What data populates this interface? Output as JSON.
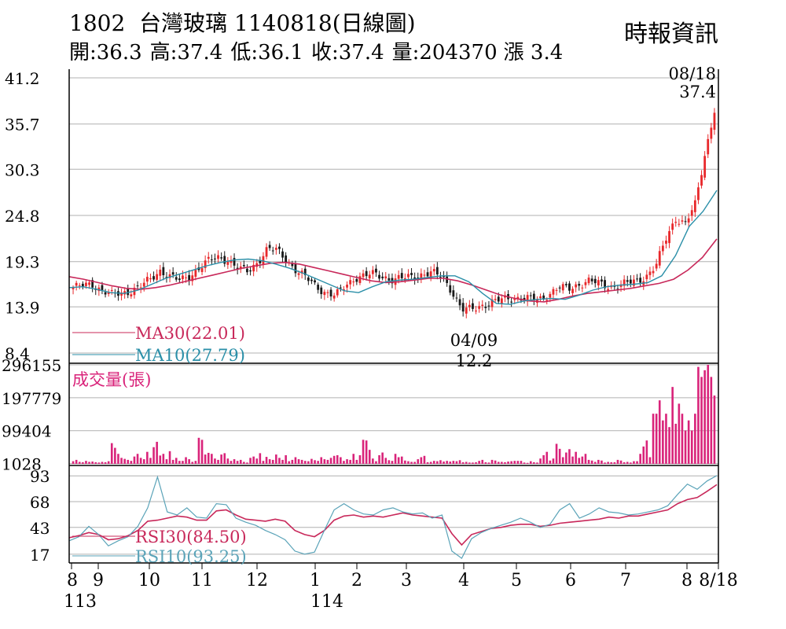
{
  "header": {
    "code": "1802",
    "name": "台灣玻璃",
    "date_chart": "1140818(日線圖)",
    "source": "時報資訊",
    "open": "開:36.3",
    "high": "高:37.4",
    "low": "低:36.1",
    "close": "收:37.4",
    "volume": "量:204370",
    "change": "漲 3.4"
  },
  "colors": {
    "up": "#e8282b",
    "down": "#1a1a1a",
    "ma30": "#c8285a",
    "ma10": "#2a8fa8",
    "volume": "#d9237a",
    "rsi30": "#c8285a",
    "rsi10": "#5aa3b8",
    "grid": "#b0b0b0"
  },
  "chart_data": [
    {
      "type": "candlestick",
      "panel": "price",
      "y_ticks": [
        "41.2",
        "35.7",
        "30.3",
        "24.8",
        "19.3",
        "13.9",
        "8.4"
      ],
      "ylim": [
        8.4,
        41.2
      ],
      "ma30_label": "MA30(22.01)",
      "ma10_label": "MA10(27.79)",
      "annotations": [
        {
          "date": "08/18",
          "value": "37.4"
        },
        {
          "date": "04/09",
          "value": "12.2"
        }
      ],
      "close_path": [
        16.2,
        16.4,
        16.6,
        15.9,
        15.3,
        15.5,
        15.9,
        16.4,
        17.2,
        18.3,
        17.5,
        17.0,
        17.6,
        18.6,
        19.4,
        19.8,
        19.5,
        18.4,
        18.1,
        19.3,
        20.8,
        20.6,
        19.5,
        18.2,
        17.3,
        16.4,
        15.6,
        15.2,
        16.4,
        17.4,
        17.6,
        17.8,
        17.5,
        17.1,
        17.3,
        17.6,
        17.8,
        17.9,
        17.5,
        15.8,
        13.5,
        13.6,
        14.1,
        14.4,
        14.7,
        15.0,
        15.0,
        14.8,
        14.8,
        15.5,
        16.2,
        16.0,
        16.6,
        17.0,
        16.7,
        16.4,
        16.4,
        16.7,
        17.0,
        17.6,
        18.8,
        22.0,
        24.5,
        23.8,
        26.0,
        32.0,
        37.4
      ],
      "ma30_path": [
        17.5,
        17.2,
        16.8,
        16.4,
        16.1,
        16.0,
        16.2,
        16.5,
        16.9,
        17.3,
        17.7,
        18.1,
        18.5,
        18.8,
        19.1,
        19.2,
        19.0,
        18.6,
        18.2,
        17.8,
        17.4,
        17.0,
        16.8,
        16.9,
        17.1,
        17.3,
        17.3,
        17.0,
        16.5,
        15.9,
        15.3,
        14.9,
        14.6,
        14.5,
        14.8,
        15.2,
        15.5,
        15.7,
        15.9,
        16.1,
        16.4,
        16.7,
        17.2,
        18.3,
        19.8,
        22.0
      ],
      "ma10_path": [
        16.2,
        16.3,
        16.0,
        15.6,
        15.5,
        15.9,
        16.6,
        17.3,
        17.8,
        18.3,
        18.8,
        19.2,
        19.5,
        19.6,
        19.4,
        19.0,
        18.5,
        17.9,
        17.2,
        16.5,
        15.8,
        15.6,
        16.3,
        16.9,
        17.1,
        17.2,
        17.4,
        17.6,
        17.6,
        16.9,
        15.5,
        14.3,
        14.2,
        14.6,
        14.8,
        14.9,
        14.8,
        15.3,
        15.9,
        16.3,
        16.5,
        16.6,
        16.8,
        17.6,
        20.0,
        23.5,
        25.3,
        27.79
      ]
    },
    {
      "type": "bar",
      "panel": "volume",
      "title": "成交量(張)",
      "y_ticks": [
        "296155",
        "197779",
        "99404",
        "1028"
      ],
      "ylim": [
        0,
        296155
      ],
      "values": [
        8000,
        12000,
        6000,
        5000,
        9000,
        6000,
        7000,
        5000,
        4000,
        6000,
        5000,
        8000,
        62000,
        48000,
        30000,
        18000,
        15000,
        12000,
        9000,
        22000,
        30000,
        18000,
        14000,
        36000,
        18000,
        50000,
        66000,
        25000,
        30000,
        14000,
        38000,
        12000,
        18000,
        9000,
        9000,
        20000,
        14000,
        6000,
        9000,
        78000,
        72000,
        28000,
        33000,
        30000,
        16000,
        12000,
        28000,
        32000,
        16000,
        9000,
        14000,
        9000,
        12000,
        6000,
        4000,
        18000,
        22000,
        16000,
        32000,
        9000,
        21000,
        14000,
        12000,
        28000,
        18000,
        12000,
        26000,
        8000,
        12000,
        20000,
        14000,
        12000,
        9000,
        8000,
        15000,
        11000,
        9000,
        20000,
        14000,
        12000,
        18000,
        24000,
        26000,
        20000,
        9000,
        14000,
        12000,
        30000,
        12000,
        26000,
        72000,
        70000,
        42000,
        16000,
        8000,
        26000,
        34000,
        18000,
        11000,
        9000,
        30000,
        20000,
        22000,
        10000,
        8000,
        6000,
        6000,
        14000,
        20000,
        24000,
        5000,
        6000,
        9000,
        8000,
        11000,
        7000,
        9000,
        7000,
        9000,
        8000,
        11000,
        5000,
        6000,
        4000,
        4000,
        5000,
        9000,
        12000,
        5000,
        4000,
        12000,
        10000,
        6000,
        6000,
        5000,
        7000,
        8000,
        9000,
        9000,
        9000,
        4000,
        3000,
        8000,
        5000,
        4000,
        16000,
        26000,
        36000,
        10000,
        16000,
        60000,
        45000,
        20000,
        34000,
        44000,
        22000,
        36000,
        18000,
        22000,
        30000,
        12000,
        10000,
        6000,
        12000,
        10000,
        4000,
        6000,
        5000,
        5000,
        12000,
        10000,
        5000,
        6000,
        4000,
        8000,
        8000,
        30000,
        52000,
        70000,
        20000,
        150000,
        150000,
        190000,
        130000,
        150000,
        110000,
        230000,
        120000,
        180000,
        150000,
        100000,
        130000,
        100000,
        150000,
        290000,
        260000,
        280000,
        296155,
        260000,
        204370
      ]
    },
    {
      "type": "line",
      "panel": "rsi",
      "y_ticks": [
        "93",
        "68",
        "43",
        "17"
      ],
      "ylim": [
        10,
        97
      ],
      "rsi30_label": "RSI30(84.50)",
      "rsi10_label": "RSI10(93.25)",
      "rsi30_path": [
        33,
        35,
        38,
        36,
        31,
        32,
        35,
        40,
        49,
        50,
        52,
        54,
        53,
        50,
        50,
        59,
        60,
        55,
        51,
        50,
        49,
        51,
        49,
        40,
        36,
        34,
        40,
        50,
        54,
        55,
        53,
        54,
        53,
        55,
        57,
        55,
        54,
        53,
        52,
        37,
        26,
        36,
        39,
        42,
        43,
        45,
        46,
        46,
        44,
        45,
        47,
        48,
        49,
        50,
        51,
        53,
        52,
        54,
        54,
        56,
        58,
        60,
        66,
        70,
        72,
        78,
        84.5
      ],
      "rsi10_path": [
        30,
        34,
        44,
        36,
        25,
        30,
        34,
        44,
        62,
        92,
        58,
        55,
        62,
        53,
        52,
        66,
        65,
        52,
        48,
        45,
        40,
        36,
        31,
        20,
        17,
        19,
        40,
        60,
        66,
        60,
        56,
        55,
        60,
        62,
        58,
        56,
        57,
        52,
        55,
        20,
        13,
        32,
        38,
        42,
        45,
        48,
        52,
        48,
        43,
        46,
        60,
        66,
        52,
        56,
        62,
        58,
        57,
        55,
        56,
        58,
        60,
        64,
        75,
        85,
        80,
        88,
        93.25
      ]
    }
  ],
  "x_axis": {
    "month_labels": [
      "8",
      "9",
      "10",
      "11",
      "12",
      "1",
      "2",
      "3",
      "4",
      "5",
      "6",
      "7",
      "8",
      "8/18"
    ],
    "year_labels": [
      "113",
      "114"
    ]
  }
}
